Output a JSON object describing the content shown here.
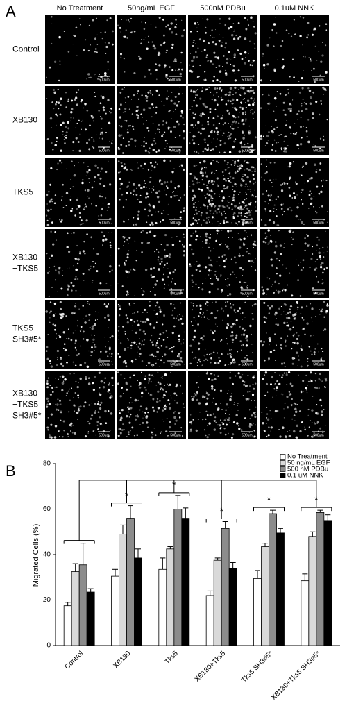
{
  "panel_a": {
    "label": "A",
    "columns": [
      "No Treatment",
      "50ng/mL EGF",
      "500nM PDBu",
      "0.1uM NNK"
    ],
    "rows": [
      [
        "Control"
      ],
      [
        "XB130"
      ],
      [
        "TKS5"
      ],
      [
        "XB130",
        "+TKS5"
      ],
      [
        "TKS5",
        "SH3#5*"
      ],
      [
        "XB130",
        "+TKS5",
        "SH3#5*"
      ]
    ],
    "scale_label": "500um"
  },
  "chart_data": {
    "type": "bar",
    "panel_label": "B",
    "y_label": "Migrated Cells (%)",
    "categories": [
      "Control",
      "XB130",
      "Tks5",
      "XB130+Tks5",
      "Tks5 SH3#5*",
      "XB130+Tks5 SH3#5*"
    ],
    "series": [
      {
        "name": "No Treatment",
        "color": "#ffffff",
        "values": [
          17.5,
          30.5,
          33.5,
          22,
          29.5,
          28.5
        ],
        "errors": [
          1.5,
          3,
          5,
          2,
          3.5,
          3
        ]
      },
      {
        "name": "50 ng/mL EGF",
        "color": "#d9d9d9",
        "values": [
          32.5,
          49,
          42.5,
          37.5,
          43.5,
          48
        ],
        "errors": [
          3.5,
          4,
          1,
          1,
          1.5,
          2
        ]
      },
      {
        "name": "500 nM PDBu",
        "color": "#8c8c8c",
        "values": [
          35.5,
          56,
          60,
          51.5,
          58,
          58.5
        ],
        "errors": [
          9.5,
          5.5,
          6,
          3,
          1.5,
          1
        ]
      },
      {
        "name": "0.1 uM NNK",
        "color": "#000000",
        "values": [
          23.5,
          38.5,
          56,
          34,
          49.5,
          55
        ],
        "errors": [
          1.5,
          4,
          4.5,
          2.5,
          2,
          2.5
        ]
      }
    ],
    "ylim": [
      0,
      80
    ],
    "yticks": [
      0,
      20,
      40,
      60,
      80
    ],
    "grid": false,
    "legend": "top-right",
    "significance_label": "*"
  }
}
